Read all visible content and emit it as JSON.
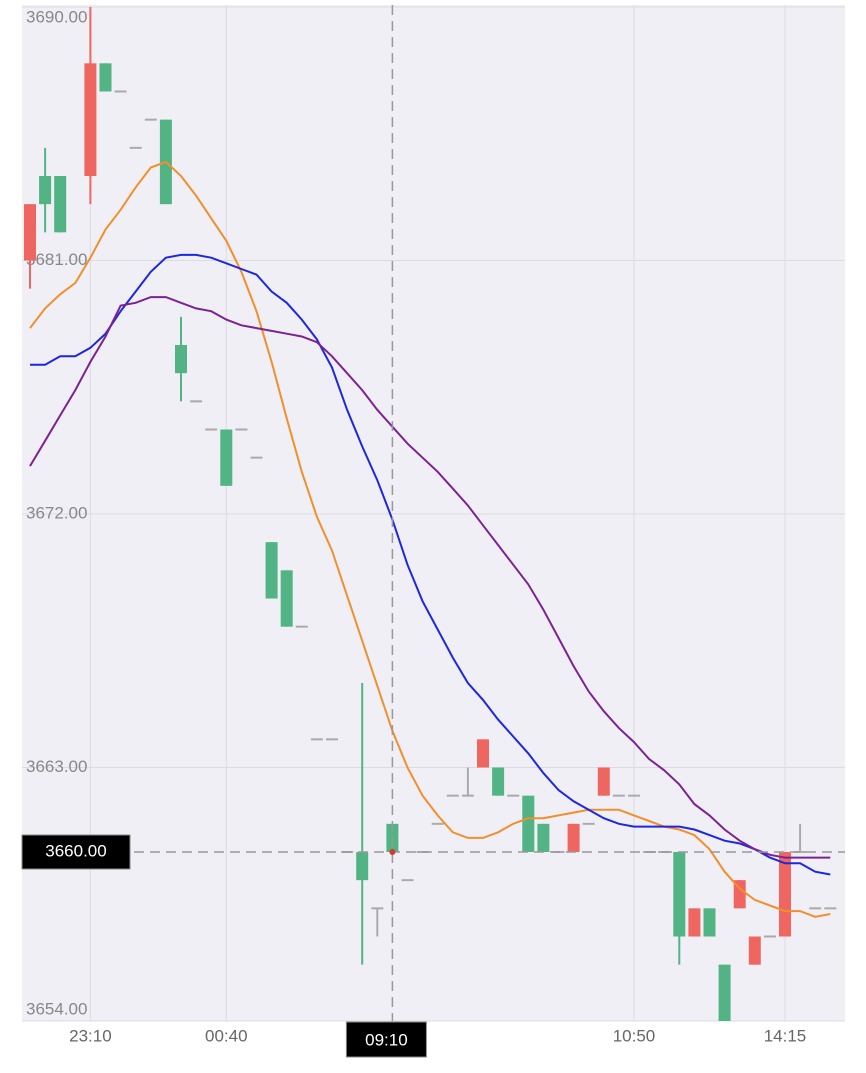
{
  "chart_data": {
    "type": "candlestick",
    "categories": [
      null,
      null,
      null,
      null,
      "23:10",
      null,
      null,
      null,
      null,
      null,
      null,
      null,
      null,
      "00:40",
      null,
      null,
      null,
      null,
      null,
      null,
      null,
      null,
      null,
      null,
      "09:10",
      null,
      null,
      null,
      null,
      null,
      null,
      null,
      null,
      null,
      null,
      null,
      null,
      null,
      null,
      null,
      "10:50",
      null,
      null,
      null,
      null,
      null,
      null,
      null,
      null,
      null,
      "14:15",
      null,
      null,
      null
    ],
    "open": [
      3681,
      3684,
      3684,
      null,
      3684,
      3688,
      3687,
      3685,
      3686,
      3686,
      3678,
      3676,
      3675,
      3675,
      3675,
      3674,
      3671,
      3670,
      3668,
      3664,
      3664,
      3660,
      3660,
      3658,
      3661,
      3659,
      3660,
      3661,
      3662,
      3662,
      3663,
      3663,
      3662,
      3662,
      3661,
      3660,
      3660,
      3661,
      3662,
      3662,
      3662,
      3660,
      3660,
      3660,
      3657,
      3658,
      3656,
      3658,
      3656,
      3657,
      3657,
      3660,
      3658,
      3658
    ],
    "high": [
      3683,
      3685,
      3684,
      null,
      3690,
      3688,
      3687,
      3685,
      3686,
      3686,
      3679,
      3676,
      3675,
      3675,
      3675,
      3674,
      3671,
      3670,
      3668,
      3664,
      3664,
      3660,
      3666,
      3658,
      3661,
      3659,
      3660,
      3661,
      3662,
      3663,
      3664,
      3663,
      3662,
      3662,
      3661,
      3660,
      3661,
      3661,
      3663,
      3662,
      3662,
      3660,
      3660,
      3660,
      3658,
      3658,
      3656,
      3659,
      3657,
      3657,
      3660,
      3661,
      3658,
      3658
    ],
    "low": [
      3680,
      3682,
      3682,
      null,
      3683,
      3687,
      3687,
      3685,
      3686,
      3683,
      3676,
      3676,
      3675,
      3673,
      3675,
      3674,
      3669,
      3668,
      3668,
      3664,
      3664,
      3660,
      3656,
      3657,
      3660,
      3659,
      3660,
      3661,
      3662,
      3662,
      3663,
      3662,
      3662,
      3660,
      3660,
      3660,
      3660,
      3661,
      3662,
      3662,
      3662,
      3660,
      3660,
      3656,
      3657,
      3657,
      3654,
      3658,
      3656,
      3657,
      3657,
      3660,
      3658,
      3658
    ],
    "close": [
      3683,
      3683,
      3682,
      null,
      3688,
      3687,
      3687,
      3685,
      3686,
      3683,
      3677,
      3676,
      3675,
      3673,
      3675,
      3674,
      3669,
      3668,
      3668,
      3664,
      3664,
      3660,
      3659,
      3658,
      3660,
      3659,
      3660,
      3661,
      3662,
      3662,
      3664,
      3662,
      3662,
      3660,
      3660,
      3660,
      3661,
      3661,
      3663,
      3662,
      3662,
      3660,
      3660,
      3657,
      3658,
      3657,
      3654,
      3659,
      3657,
      3657,
      3660,
      3660,
      3658,
      3658
    ],
    "up_color": "#ef6661",
    "down_color": "#52b384",
    "flat_color": "#aaaaaa",
    "series": [
      {
        "color": "#f28f2c",
        "values": [
          3678.6,
          3679.3,
          3679.8,
          3680.2,
          3681.1,
          3682.1,
          3682.8,
          3683.6,
          3684.3,
          3684.5,
          3684.0,
          3683.3,
          3682.5,
          3681.7,
          3680.6,
          3679.2,
          3677.4,
          3675.4,
          3673.5,
          3671.9,
          3670.7,
          3669.1,
          3667.5,
          3665.9,
          3664.3,
          3663.0,
          3662.0,
          3661.3,
          3660.7,
          3660.5,
          3660.5,
          3660.7,
          3661.0,
          3661.2,
          3661.2,
          3661.3,
          3661.4,
          3661.5,
          3661.5,
          3661.5,
          3661.3,
          3661.1,
          3660.9,
          3660.8,
          3660.6,
          3660.1,
          3659.3,
          3658.7,
          3658.3,
          3658.1,
          3657.9,
          3657.9,
          3657.7,
          3657.8
        ]
      },
      {
        "color": "#1d27e0",
        "values": [
          3677.3,
          3677.3,
          3677.6,
          3677.6,
          3677.9,
          3678.4,
          3679.2,
          3679.9,
          3680.6,
          3681.1,
          3681.2,
          3681.2,
          3681.1,
          3680.9,
          3680.7,
          3680.5,
          3679.9,
          3679.5,
          3678.9,
          3678.2,
          3677.2,
          3675.7,
          3674.4,
          3673.2,
          3671.8,
          3670.2,
          3668.9,
          3667.9,
          3666.9,
          3666.0,
          3665.4,
          3664.7,
          3664.1,
          3663.5,
          3662.8,
          3662.2,
          3661.8,
          3661.5,
          3661.2,
          3661.0,
          3660.9,
          3660.9,
          3660.9,
          3660.9,
          3660.8,
          3660.6,
          3660.4,
          3660.3,
          3660.1,
          3659.8,
          3659.6,
          3659.6,
          3659.3,
          3659.2
        ]
      },
      {
        "color": "#7b2392",
        "values": [
          3673.7,
          3674.6,
          3675.5,
          3676.4,
          3677.4,
          3678.3,
          3679.4,
          3679.5,
          3679.7,
          3679.7,
          3679.5,
          3679.3,
          3679.2,
          3678.9,
          3678.7,
          3678.6,
          3678.5,
          3678.4,
          3678.3,
          3678.1,
          3677.6,
          3677.0,
          3676.4,
          3675.7,
          3675.1,
          3674.5,
          3674.0,
          3673.5,
          3672.9,
          3672.3,
          3671.6,
          3670.9,
          3670.2,
          3669.5,
          3668.6,
          3667.6,
          3666.6,
          3665.7,
          3665.0,
          3664.4,
          3663.9,
          3663.3,
          3662.9,
          3662.4,
          3661.7,
          3661.3,
          3660.8,
          3660.4,
          3660.1,
          3659.9,
          3659.8,
          3659.8,
          3659.8,
          3659.8
        ]
      }
    ],
    "ylim": [
      3654,
      3690
    ],
    "yticks": [
      {
        "value": 3690,
        "label": "3690.00"
      },
      {
        "value": 3681,
        "label": "3681.00"
      },
      {
        "value": 3672,
        "label": "3672.00"
      },
      {
        "value": 3663,
        "label": "3663.00"
      },
      {
        "value": 3654,
        "label": "3654.00"
      }
    ],
    "grid": true,
    "crosshair": {
      "x": 24,
      "y": {
        "value": 3660,
        "label": "3660.00"
      }
    }
  }
}
